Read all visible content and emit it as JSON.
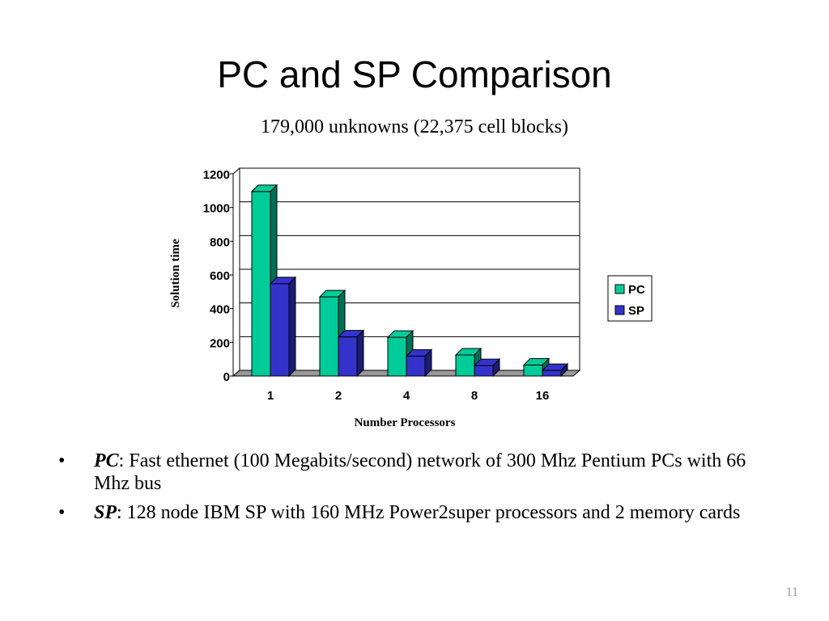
{
  "slide": {
    "title": "PC and SP Comparison",
    "subtitle": "179,000 unknowns (22,375 cell blocks)",
    "page_number": "11"
  },
  "bullets": [
    {
      "term": "PC",
      "text": ": Fast ethernet (100 Megabits/second) network of 300 Mhz Pentium PCs with 66 Mhz bus"
    },
    {
      "term": "SP",
      "text": ": 128 node IBM SP with 160 MHz Power2super processors and 2 memory cards"
    }
  ],
  "chart_data": {
    "type": "bar",
    "style": "3d-clustered",
    "categories": [
      "1",
      "2",
      "4",
      "8",
      "16"
    ],
    "series": [
      {
        "name": "PC",
        "color": "#00cc99",
        "values": [
          1095,
          470,
          230,
          125,
          65
        ]
      },
      {
        "name": "SP",
        "color": "#3333cc",
        "values": [
          548,
          232,
          118,
          62,
          33
        ]
      }
    ],
    "xlabel": "Number Processors",
    "ylabel": "Solution time",
    "ylim": [
      0,
      1200
    ],
    "yticks": [
      0,
      200,
      400,
      600,
      800,
      1000,
      1200
    ],
    "grid": true,
    "legend_position": "right"
  }
}
